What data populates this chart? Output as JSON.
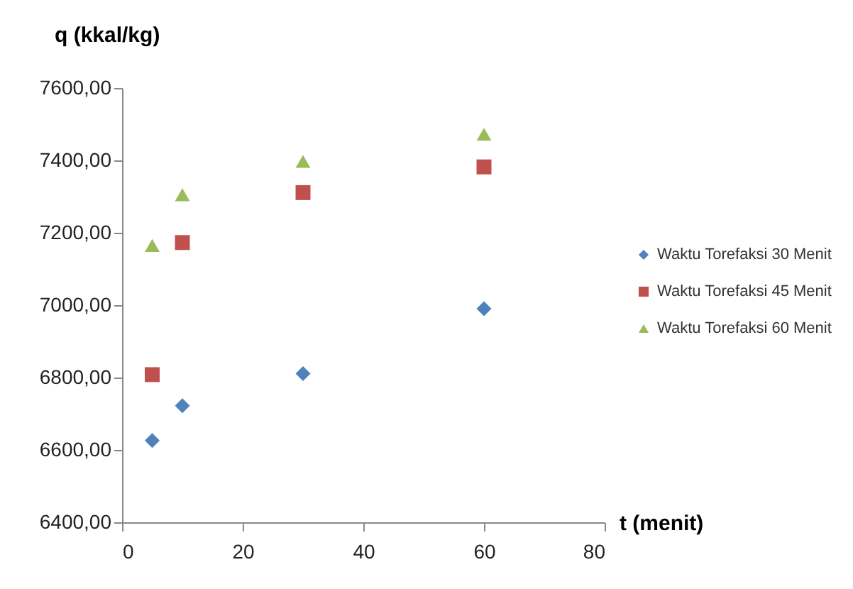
{
  "chart_data": {
    "type": "scatter",
    "xlabel": "t (menit)",
    "ylabel": "q (kkal/kg)",
    "x": [
      5,
      10,
      30,
      60
    ],
    "series": [
      {
        "name": "Waktu Torefaksi 30 Menit",
        "color": "#4f81bd",
        "marker": "diamond",
        "values": [
          6626,
          6722,
          6811,
          6990
        ]
      },
      {
        "name": "Waktu Torefaksi 45 Menit",
        "color": "#c0504d",
        "marker": "square",
        "values": [
          6808,
          7173,
          7311,
          7382
        ]
      },
      {
        "name": "Waktu Torefaksi 60 Menit",
        "color": "#9bbb59",
        "marker": "triangle",
        "values": [
          7165,
          7305,
          7397,
          7472
        ]
      }
    ],
    "xlim": [
      0,
      80
    ],
    "xticks": [
      0,
      20,
      40,
      60,
      80
    ],
    "ylim": [
      6400,
      7600
    ],
    "yticks": [
      {
        "value": 6400,
        "label": "6400,00"
      },
      {
        "value": 6600,
        "label": "6600,00"
      },
      {
        "value": 6800,
        "label": "6800,00"
      },
      {
        "value": 7000,
        "label": "7000,00"
      },
      {
        "value": 7200,
        "label": "7200,00"
      },
      {
        "value": 7400,
        "label": "7400,00"
      },
      {
        "value": 7600,
        "label": "7600,00"
      }
    ],
    "grid": false,
    "legend": "right"
  }
}
